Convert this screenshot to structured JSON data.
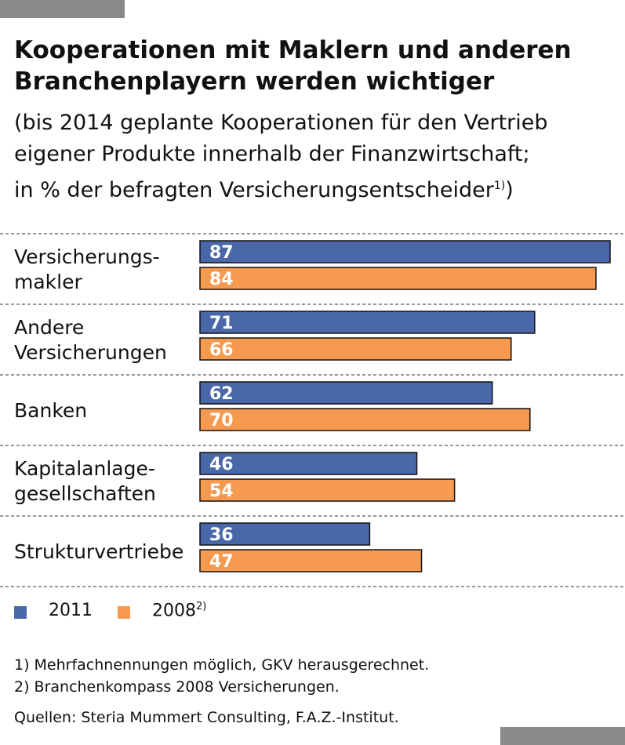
{
  "chart_data": {
    "type": "bar",
    "orientation": "horizontal",
    "title": "Kooperationen mit Maklern und anderen Branchenplayern werden wichtiger",
    "subtitle_lines": [
      "(bis 2014 geplante Kooperationen für den Vertrieb",
      "eigener Produkte innerhalb der Finanzwirtschaft;",
      "in % der befragten Versicherungsentscheider"
    ],
    "subtitle_note": "1)",
    "subtitle_close": ")",
    "categories": [
      [
        "Versicherungs-",
        "makler"
      ],
      [
        "Andere",
        "Versicherungen"
      ],
      [
        "Banken"
      ],
      [
        "Kapitalanlage-",
        "gesellschaften"
      ],
      [
        "Strukturvertriebe"
      ]
    ],
    "series": [
      {
        "name": "2011",
        "note": "",
        "color": "#4a68a8",
        "values": [
          87,
          71,
          62,
          46,
          36
        ]
      },
      {
        "name": "2008",
        "note": "2)",
        "color": "#f59a4f",
        "values": [
          84,
          66,
          70,
          54,
          47
        ]
      }
    ],
    "xlim": [
      0,
      87
    ],
    "grid": false,
    "legend_position": "bottom-left",
    "footnotes": [
      "1)  Mehrfachnennungen möglich, GKV herausgerechnet.",
      "2)  Branchenkompass 2008 Versicherungen."
    ],
    "source": "Quellen: Steria Mummert Consulting, F.A.Z.-Institut."
  }
}
